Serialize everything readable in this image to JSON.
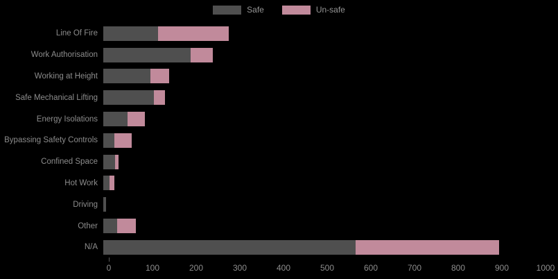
{
  "chart_data": {
    "type": "bar",
    "orientation": "horizontal",
    "stacked": true,
    "title": "",
    "xlabel": "",
    "ylabel": "",
    "categories": [
      "Line Of Fire",
      "Work Authorisation",
      "Working at Height",
      "Safe Mechanical Lifting",
      "Energy Isolations",
      "Bypassing Safety Controls",
      "Confined Space",
      "Hot Work",
      "Driving",
      "Other",
      "N/A"
    ],
    "series": [
      {
        "name": "Safe",
        "color": "#4f4f4f",
        "values": [
          125,
          200,
          108,
          116,
          56,
          25,
          27,
          14,
          6,
          32,
          577
        ]
      },
      {
        "name": "Un-safe",
        "color": "#c18a9b",
        "values": [
          162,
          50,
          42,
          26,
          39,
          40,
          8,
          11,
          0,
          42,
          329
        ]
      }
    ],
    "xlim": [
      0,
      1000
    ],
    "x_ticks": [
      0,
      100,
      200,
      300,
      400,
      500,
      600,
      700,
      800,
      900,
      1000
    ],
    "legend_position": "top",
    "grid": false,
    "background_color": "#000000",
    "text_color": "#8c8c8c"
  },
  "legend": {
    "items": [
      {
        "label": "Safe",
        "color": "#4f4f4f"
      },
      {
        "label": "Un-safe",
        "color": "#c18a9b"
      }
    ]
  }
}
